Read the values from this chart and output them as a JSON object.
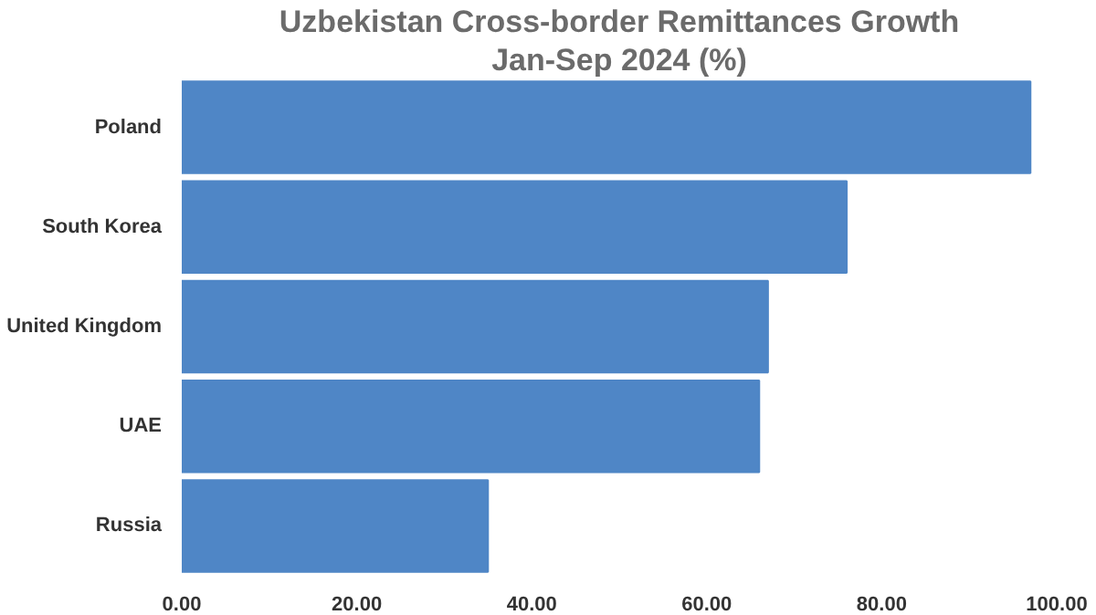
{
  "chart_data": {
    "type": "bar",
    "orientation": "horizontal",
    "title": "Uzbekistan Cross-border Remittances Growth",
    "subtitle": "Jan-Sep 2024 (%)",
    "categories": [
      "Poland",
      "South Korea",
      "United Kingdom",
      "UAE",
      "Russia"
    ],
    "values": [
      97,
      76,
      67,
      66,
      35
    ],
    "color": "#4f86c6",
    "xlim": [
      0,
      100
    ],
    "xticks": [
      {
        "value": 0,
        "label": "0.00"
      },
      {
        "value": 20,
        "label": "20.00"
      },
      {
        "value": 40,
        "label": "40.00"
      },
      {
        "value": 60,
        "label": "60.00"
      },
      {
        "value": 80,
        "label": "80.00"
      },
      {
        "value": 100,
        "label": "100.00"
      }
    ],
    "grid": false
  }
}
